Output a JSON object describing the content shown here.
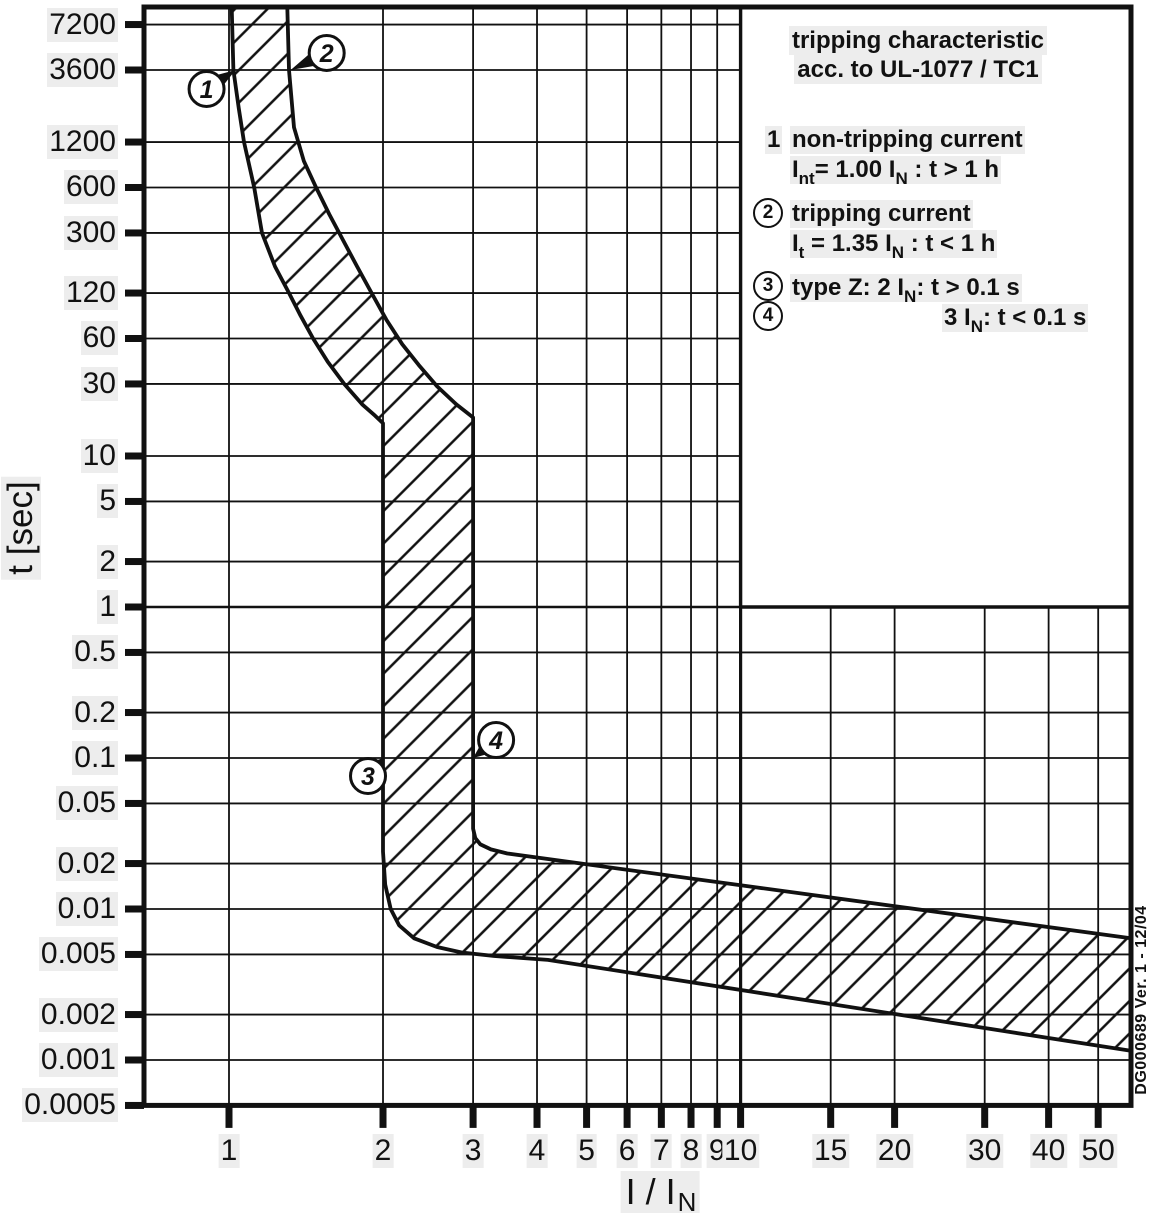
{
  "page": {
    "background": "#ffffff",
    "ink": "#111111",
    "label_bg": "#ededed"
  },
  "watermark": {
    "text": "DG000689  Ver. 1 - 12/04"
  },
  "y_axis": {
    "title": "t [sec]",
    "ticks": [
      {
        "v": 7200,
        "label": "7200"
      },
      {
        "v": 3600,
        "label": "3600"
      },
      {
        "v": 1200,
        "label": "1200"
      },
      {
        "v": 600,
        "label": "600"
      },
      {
        "v": 300,
        "label": "300"
      },
      {
        "v": 120,
        "label": "120"
      },
      {
        "v": 60,
        "label": "60"
      },
      {
        "v": 30,
        "label": "30"
      },
      {
        "v": 10,
        "label": "10"
      },
      {
        "v": 5,
        "label": "5"
      },
      {
        "v": 2,
        "label": "2"
      },
      {
        "v": 1,
        "label": "1"
      },
      {
        "v": 0.5,
        "label": "0.5"
      },
      {
        "v": 0.2,
        "label": "0.2"
      },
      {
        "v": 0.1,
        "label": "0.1"
      },
      {
        "v": 0.05,
        "label": "0.05"
      },
      {
        "v": 0.02,
        "label": "0.02"
      },
      {
        "v": 0.01,
        "label": "0.01"
      },
      {
        "v": 0.005,
        "label": "0.005"
      },
      {
        "v": 0.002,
        "label": "0.002"
      },
      {
        "v": 0.001,
        "label": "0.001"
      },
      {
        "v": 0.0005,
        "label": "0.0005"
      }
    ]
  },
  "x_axis": {
    "title_main": "I / I",
    "title_sub": "N",
    "ticks": [
      {
        "v": 1,
        "label": "1"
      },
      {
        "v": 2,
        "label": "2"
      },
      {
        "v": 3,
        "label": "3"
      },
      {
        "v": 4,
        "label": "4"
      },
      {
        "v": 5,
        "label": "5"
      },
      {
        "v": 6,
        "label": "6"
      },
      {
        "v": 7,
        "label": "7"
      },
      {
        "v": 8,
        "label": "8"
      },
      {
        "v": 9,
        "label": "9"
      },
      {
        "v": 10,
        "label": "10"
      },
      {
        "v": 15,
        "label": "15"
      },
      {
        "v": 20,
        "label": "20"
      },
      {
        "v": 30,
        "label": "30"
      },
      {
        "v": 40,
        "label": "40"
      },
      {
        "v": 50,
        "label": "50"
      }
    ]
  },
  "legend": {
    "title_line1": "tripping characteristic",
    "title_line2": "acc. to UL-1077 / TC1",
    "items": [
      {
        "num": "1",
        "circled": false,
        "line1": "non-tripping current",
        "formula": [
          {
            "t": "I"
          },
          {
            "t": "nt",
            "sub": true
          },
          {
            "t": "= 1.00 I"
          },
          {
            "t": "N",
            "sub": true
          },
          {
            "t": " : t > 1 h"
          }
        ]
      },
      {
        "num": "2",
        "circled": true,
        "line1": "tripping current",
        "formula": [
          {
            "t": "I"
          },
          {
            "t": "t",
            "sub": true
          },
          {
            "t": " = 1.35 I"
          },
          {
            "t": "N",
            "sub": true
          },
          {
            "t": " : t < 1 h"
          }
        ]
      },
      {
        "num": "3",
        "circled": true,
        "line1": null,
        "formula": [
          {
            "t": "type Z:  2 I"
          },
          {
            "t": "N",
            "sub": true
          },
          {
            "t": ": t > 0.1 s"
          }
        ]
      },
      {
        "num": "4",
        "circled": true,
        "line1": null,
        "formula": [
          {
            "t": "3 I"
          },
          {
            "t": "N",
            "sub": true
          },
          {
            "t": ": t < 0.1 s"
          }
        ]
      }
    ]
  },
  "chart_data": {
    "type": "area",
    "title": "tripping characteristic acc. to UL-1077 / TC1",
    "xlabel": "I / IN",
    "ylabel": "t [sec]",
    "x_scale": "log",
    "y_scale": "log",
    "xlim": [
      0.68,
      57.9
    ],
    "ylim": [
      0.0005,
      9400
    ],
    "x_ticks": [
      1,
      2,
      3,
      4,
      5,
      6,
      7,
      8,
      9,
      10,
      15,
      20,
      30,
      40,
      50
    ],
    "y_ticks": [
      7200,
      3600,
      1200,
      600,
      300,
      120,
      60,
      30,
      10,
      5,
      2,
      1,
      0.5,
      0.2,
      0.1,
      0.05,
      0.02,
      0.01,
      0.005,
      0.002,
      0.001,
      0.0005
    ],
    "grid": true,
    "band_style": "diagonal-hatch",
    "legend_box": {
      "x_from": 10,
      "y_from": 1
    },
    "series": [
      {
        "name": "curve-1-non-tripping-boundary",
        "points": [
          [
            1.012,
            9400
          ],
          [
            1.02,
            3600
          ],
          [
            1.045,
            2000
          ],
          [
            1.07,
            1200
          ],
          [
            1.12,
            600
          ],
          [
            1.16,
            300
          ],
          [
            1.23,
            180
          ],
          [
            1.31,
            120
          ],
          [
            1.38,
            85
          ],
          [
            1.46,
            60
          ],
          [
            1.56,
            42
          ],
          [
            1.68,
            30
          ],
          [
            1.82,
            22
          ],
          [
            1.93,
            18.5
          ],
          [
            2.0,
            16.5
          ],
          [
            2.0,
            0.024
          ],
          [
            2.02,
            0.0145
          ],
          [
            2.07,
            0.01
          ],
          [
            2.15,
            0.0078
          ],
          [
            2.3,
            0.0064
          ],
          [
            2.55,
            0.0056
          ],
          [
            2.85,
            0.00515
          ],
          [
            3.3,
            0.00488
          ],
          [
            4.2,
            0.0046
          ],
          [
            57.9,
            0.00115
          ]
        ]
      },
      {
        "name": "curve-2-tripping-boundary",
        "points": [
          [
            1.3,
            9400
          ],
          [
            1.31,
            3600
          ],
          [
            1.34,
            1500
          ],
          [
            1.4,
            900
          ],
          [
            1.48,
            600
          ],
          [
            1.57,
            400
          ],
          [
            1.67,
            270
          ],
          [
            1.78,
            180
          ],
          [
            1.9,
            120
          ],
          [
            2.03,
            80
          ],
          [
            2.18,
            55
          ],
          [
            2.35,
            40
          ],
          [
            2.55,
            29
          ],
          [
            2.78,
            22
          ],
          [
            3.0,
            18
          ],
          [
            3.0,
            0.034
          ],
          [
            3.03,
            0.0295
          ],
          [
            3.1,
            0.0268
          ],
          [
            3.25,
            0.0248
          ],
          [
            3.5,
            0.0233
          ],
          [
            57.9,
            0.0064
          ]
        ]
      }
    ],
    "annotations": [
      {
        "label": "1",
        "target": [
          1.03,
          3600
        ],
        "circle_offset": [
          -29,
          19
        ],
        "meaning": "non-tripping current 1.00 IN : t > 1 h"
      },
      {
        "label": "2",
        "target": [
          1.32,
          3600
        ],
        "circle_offset": [
          36,
          -17
        ],
        "meaning": "tripping current 1.35 IN : t < 1 h"
      },
      {
        "label": "3",
        "target": [
          2.0,
          0.1
        ],
        "circle_offset": [
          -15,
          18
        ],
        "meaning": "type Z: 2 IN : t > 0.1 s"
      },
      {
        "label": "4",
        "target": [
          3.0,
          0.1
        ],
        "circle_offset": [
          23,
          -18
        ],
        "meaning": "type Z: 3 IN : t < 0.1 s"
      }
    ]
  }
}
